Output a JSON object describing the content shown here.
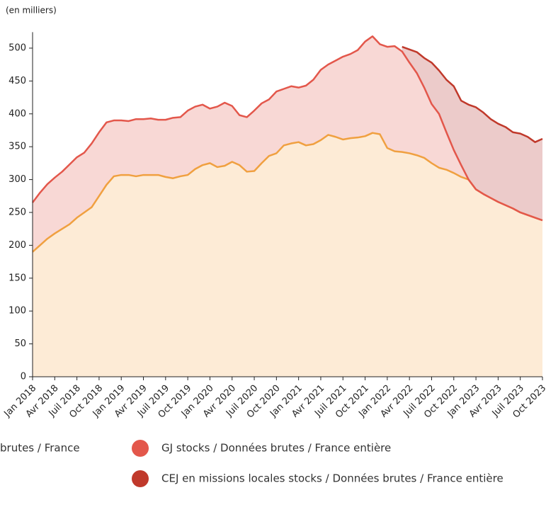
{
  "chart_data": {
    "type": "area",
    "subtitle": "(en milliers)",
    "categories": [
      "Jan 2018",
      null,
      null,
      "Avr 2018",
      null,
      null,
      "Juil 2018",
      null,
      null,
      "Oct 2018",
      null,
      null,
      "Jan 2019",
      null,
      null,
      "Avr 2019",
      null,
      null,
      "Juil 2019",
      null,
      null,
      "Oct 2019",
      null,
      null,
      "Jan 2020",
      null,
      null,
      "Avr 2020",
      null,
      null,
      "Juil 2020",
      null,
      null,
      "Oct 2020",
      null,
      null,
      "Jan 2021",
      null,
      null,
      "Avr 2021",
      null,
      null,
      "Juil 2021",
      null,
      null,
      "Oct 2021",
      null,
      null,
      "Jan 2022",
      null,
      null,
      "Avr 2022",
      null,
      null,
      "Juil 2022",
      null,
      null,
      "Oct 2022",
      null,
      null,
      "Jan 2023",
      null,
      null,
      "Avr 2023",
      null,
      null,
      "Juil 2023",
      null,
      null,
      "Oct 2023"
    ],
    "series": [
      {
        "name": "brutes / France",
        "color": "#f0a040",
        "fill": "#fdebd6",
        "values": [
          190,
          200,
          210,
          218,
          225,
          232,
          242,
          250,
          258,
          275,
          292,
          305,
          307,
          307,
          305,
          307,
          307,
          307,
          304,
          302,
          305,
          307,
          316,
          322,
          325,
          319,
          321,
          327,
          322,
          312,
          313,
          325,
          336,
          340,
          352,
          355,
          357,
          352,
          354,
          360,
          368,
          365,
          361,
          363,
          364,
          366,
          371,
          369,
          348,
          343,
          342,
          340,
          337,
          333,
          325,
          318,
          315,
          310,
          304,
          300,
          285,
          278,
          272,
          266,
          261,
          256,
          250,
          246,
          242,
          238
        ]
      },
      {
        "name": "GJ stocks / Données brutes / France entière",
        "color": "#e3574b",
        "fill": "#f8d8d5",
        "values": [
          265,
          280,
          293,
          303,
          312,
          323,
          334,
          341,
          355,
          372,
          387,
          390,
          390,
          389,
          392,
          392,
          393,
          391,
          391,
          394,
          395,
          405,
          411,
          414,
          408,
          411,
          417,
          412,
          398,
          395,
          405,
          416,
          422,
          434,
          438,
          442,
          440,
          443,
          452,
          467,
          475,
          481,
          487,
          491,
          497,
          510,
          518,
          506,
          502,
          503,
          495,
          478,
          462,
          440,
          415,
          400,
          372,
          345,
          322,
          300,
          285,
          278,
          272,
          266,
          261,
          256,
          250,
          246,
          242,
          238
        ]
      },
      {
        "name": "CEJ en missions locales stocks / Données brutes / France entière",
        "color": "#c0392b",
        "fill": "#eccbca",
        "values": [
          null,
          null,
          null,
          null,
          null,
          null,
          null,
          null,
          null,
          null,
          null,
          null,
          null,
          null,
          null,
          null,
          null,
          null,
          null,
          null,
          null,
          null,
          null,
          null,
          null,
          null,
          null,
          null,
          null,
          null,
          null,
          null,
          null,
          null,
          null,
          null,
          null,
          null,
          null,
          null,
          null,
          null,
          null,
          null,
          null,
          null,
          null,
          null,
          null,
          null,
          502,
          498,
          494,
          485,
          478,
          466,
          452,
          442,
          420,
          414,
          410,
          402,
          392,
          385,
          380,
          372,
          370,
          365,
          357,
          362
        ]
      }
    ],
    "ylim": [
      0,
      520
    ],
    "yticks": [
      0,
      50,
      100,
      150,
      200,
      250,
      300,
      350,
      400,
      450,
      500
    ]
  }
}
